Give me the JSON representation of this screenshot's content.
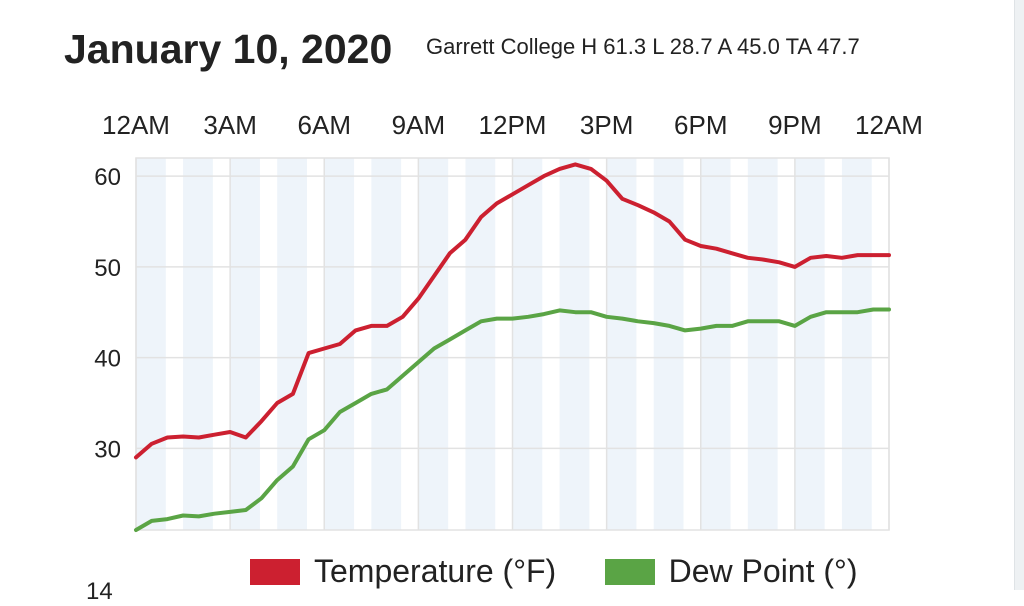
{
  "header": {
    "date_title": "January 10, 2020",
    "station_summary": "Garrett College H 61.3 L 28.7 A 45.0 TA 47.7"
  },
  "colors": {
    "temperature": "#cc2030",
    "dew_point": "#5aa445",
    "band": "#eef4fa",
    "grid": "#e2e2e2"
  },
  "chart_data": {
    "type": "line",
    "title": "",
    "x_tick_labels": [
      "12AM",
      "3AM",
      "6AM",
      "9AM",
      "12PM",
      "3PM",
      "6PM",
      "9PM",
      "12AM"
    ],
    "x_ticks_hours": [
      0,
      3,
      6,
      9,
      12,
      15,
      18,
      21,
      24
    ],
    "xlim_hours": [
      0,
      24
    ],
    "y_tick_labels": [
      "60",
      "50",
      "40",
      "30"
    ],
    "y_ticks": [
      60,
      50,
      40,
      30
    ],
    "ylim": [
      21,
      62
    ],
    "grid": true,
    "legend_position": "bottom",
    "x_hours": [
      0,
      0.5,
      1,
      1.5,
      2,
      2.5,
      3,
      3.5,
      4,
      4.5,
      5,
      5.5,
      6,
      6.5,
      7,
      7.5,
      8,
      8.5,
      9,
      9.5,
      10,
      10.5,
      11,
      11.5,
      12,
      12.5,
      13,
      13.5,
      14,
      14.5,
      15,
      15.5,
      16,
      16.5,
      17,
      17.5,
      18,
      18.5,
      19,
      19.5,
      20,
      20.5,
      21,
      21.5,
      22,
      22.5,
      23,
      23.5,
      24
    ],
    "series": [
      {
        "name": "Temperature (°F)",
        "values": [
          29.0,
          30.5,
          31.2,
          31.3,
          31.2,
          31.5,
          31.8,
          31.2,
          33.0,
          35.0,
          36.0,
          40.5,
          41.0,
          41.5,
          43.0,
          43.5,
          43.5,
          44.5,
          46.5,
          49.0,
          51.5,
          53.0,
          55.5,
          57.0,
          58.0,
          59.0,
          60.0,
          60.8,
          61.3,
          60.8,
          59.5,
          57.5,
          56.8,
          56.0,
          55.0,
          53.0,
          52.3,
          52.0,
          51.5,
          51.0,
          50.8,
          50.5,
          50.0,
          51.0,
          51.2,
          51.0,
          51.3,
          51.3,
          51.3
        ]
      },
      {
        "name": "Dew Point (°)",
        "values": [
          21.0,
          22.0,
          22.2,
          22.6,
          22.5,
          22.8,
          23.0,
          23.2,
          24.5,
          26.5,
          28.0,
          31.0,
          32.0,
          34.0,
          35.0,
          36.0,
          36.5,
          38.0,
          39.5,
          41.0,
          42.0,
          43.0,
          44.0,
          44.3,
          44.3,
          44.5,
          44.8,
          45.2,
          45.0,
          45.0,
          44.5,
          44.3,
          44.0,
          43.8,
          43.5,
          43.0,
          43.2,
          43.5,
          43.5,
          44.0,
          44.0,
          44.0,
          43.5,
          44.5,
          45.0,
          45.0,
          45.0,
          45.3,
          45.3
        ]
      }
    ]
  },
  "legend": {
    "temperature_label": "Temperature (°F)",
    "dew_point_label": "Dew Point (°)"
  },
  "footer": {
    "next_chart_label": "14"
  }
}
